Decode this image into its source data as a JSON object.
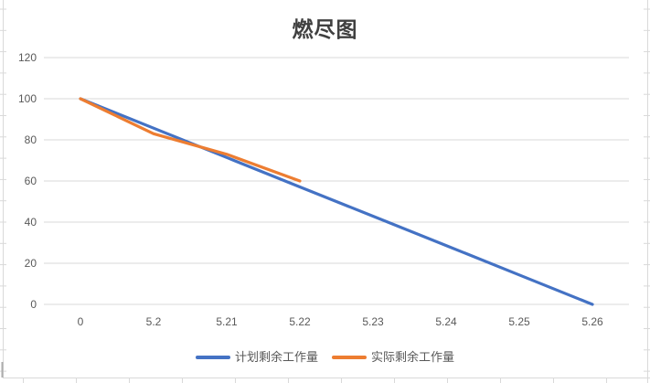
{
  "chart": {
    "colors": {
      "planned_series": "#4472C4",
      "actual_series": "#ED7D31",
      "gridline": "#D9D9D9",
      "axis_text": "#595959",
      "legend_text": "#595959",
      "title_text": "#404040",
      "sheet_gridline": "#D9D9D9"
    }
  },
  "chart_data": {
    "type": "line",
    "title": "燃尽图",
    "categories": [
      "0",
      "5.2",
      "5.21",
      "5.22",
      "5.23",
      "5.24",
      "5.25",
      "5.26"
    ],
    "series": [
      {
        "name": "计划剩余工作量",
        "color": "#4472C4",
        "values": [
          100,
          85.7,
          71.4,
          57.1,
          42.9,
          28.6,
          14.3,
          0
        ]
      },
      {
        "name": "实际剩余工作量",
        "color": "#ED7D31",
        "values": [
          100,
          83,
          73,
          60,
          null,
          null,
          null,
          null
        ]
      }
    ],
    "xlabel": "",
    "ylabel": "",
    "ylim": [
      0,
      120
    ],
    "yticks": [
      0,
      20,
      40,
      60,
      80,
      100,
      120
    ],
    "grid": true,
    "legend_position": "bottom"
  }
}
